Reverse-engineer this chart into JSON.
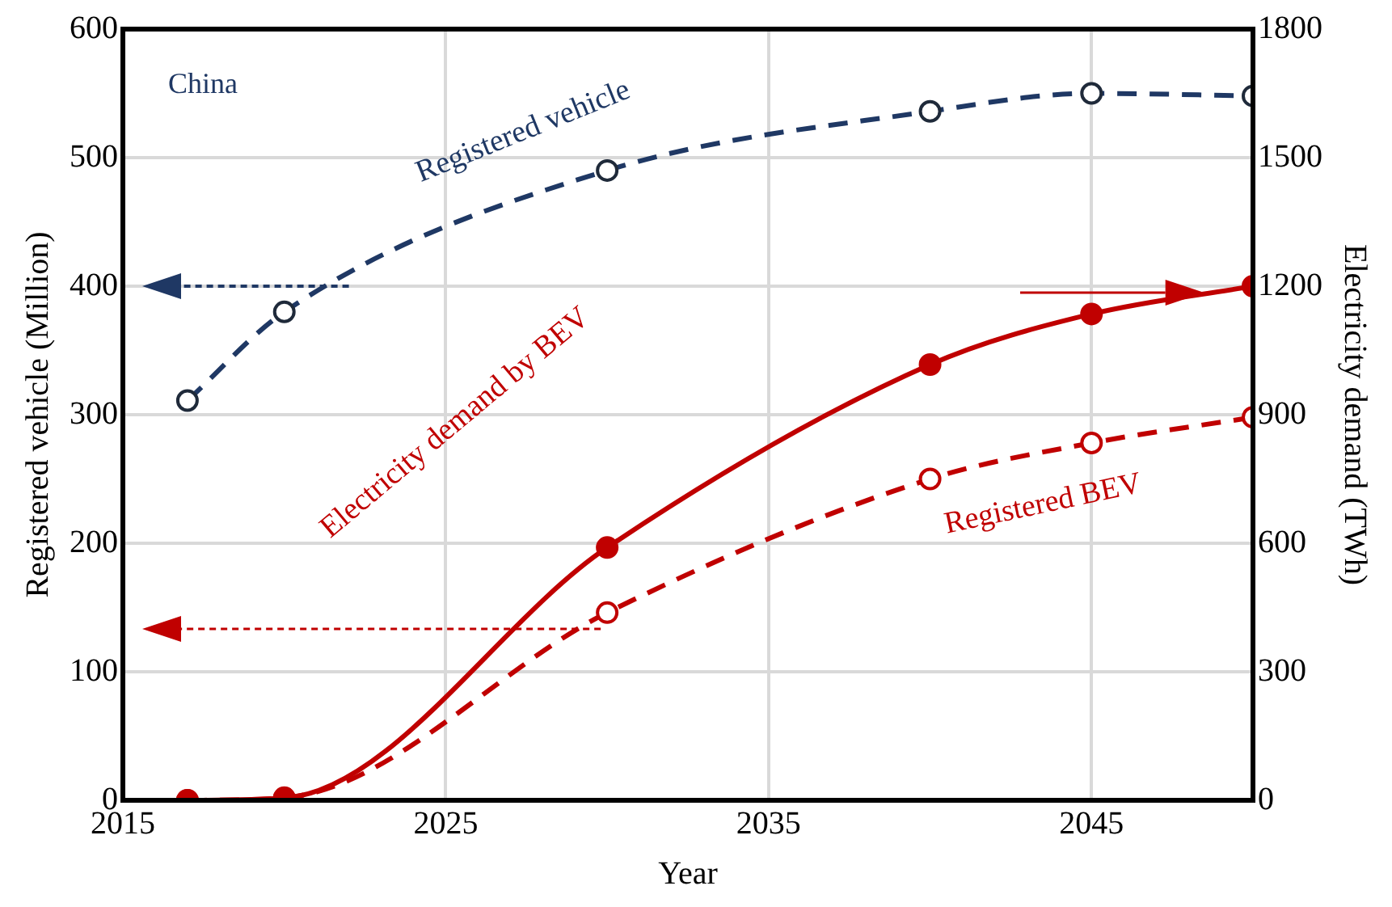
{
  "chart_data": {
    "type": "line",
    "xlabel": "Year",
    "ylabel": "Registered vehicle (Million)",
    "y2label": "Electricity demand (TWh)",
    "annotations": [
      "China"
    ],
    "x": [
      2017,
      2020,
      2030,
      2040,
      2045,
      2050
    ],
    "series": [
      {
        "name": "Registered vehicle",
        "color": "#1f3864",
        "values": [
          311,
          380,
          490,
          536,
          550,
          548
        ],
        "line_style": "dashed"
      },
      {
        "name": "Electricity demand by BEV",
        "color": "#c00000",
        "values": [
          0,
          5,
          590,
          1017,
          1135,
          1200
        ],
        "axis": "y2",
        "line_style": "solid"
      },
      {
        "name": "Registered BEV",
        "color": "#c00000",
        "values": [
          0,
          2,
          146,
          250,
          278,
          298
        ],
        "line_style": "dashed"
      }
    ],
    "xlim": [
      2015,
      2050
    ],
    "xticks": [
      2015,
      2025,
      2035,
      2045
    ],
    "ylim": [
      0,
      600
    ],
    "yticks": [
      0,
      100,
      200,
      300,
      400,
      500,
      600
    ],
    "y2lim": [
      0,
      1800
    ],
    "y2ticks": [
      0,
      300,
      600,
      900,
      1200,
      1500,
      1800
    ],
    "grid": true,
    "legend": false,
    "marker": "circle"
  }
}
